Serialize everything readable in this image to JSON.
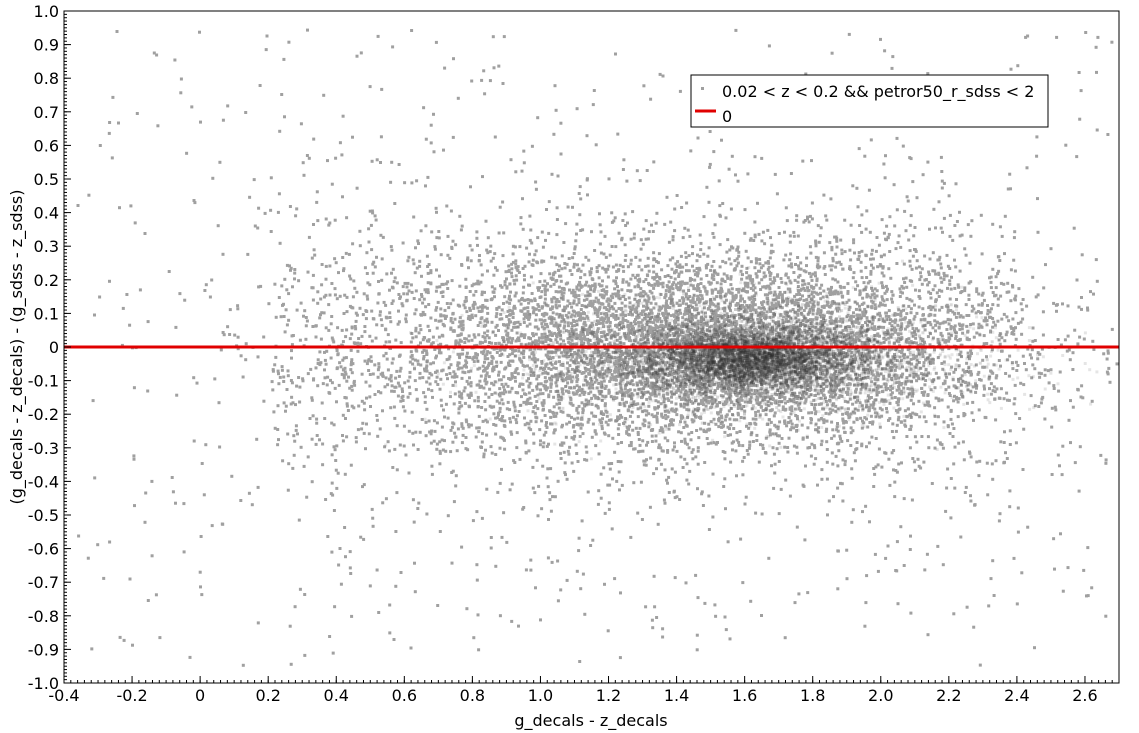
{
  "chart_data": {
    "type": "scatter",
    "title": "",
    "xlabel": "g_decals - z_decals",
    "ylabel": "(g_decals - z_decals) - (g_sdss - z_sdss)",
    "xlim": [
      -0.4,
      2.7
    ],
    "ylim": [
      -1.0,
      1.0
    ],
    "x_ticks": [
      "-0.4",
      "-0.2",
      "0",
      "0.2",
      "0.4",
      "0.6",
      "0.8",
      "1.0",
      "1.2",
      "1.4",
      "1.6",
      "1.8",
      "2.0",
      "2.2",
      "2.4",
      "2.6"
    ],
    "x_tick_values": [
      -0.4,
      -0.2,
      0,
      0.2,
      0.4,
      0.6,
      0.8,
      1.0,
      1.2,
      1.4,
      1.6,
      1.8,
      2.0,
      2.2,
      2.4,
      2.6
    ],
    "y_ticks": [
      "-1.0",
      "-0.9",
      "-0.8",
      "-0.7",
      "-0.6",
      "-0.5",
      "-0.4",
      "-0.3",
      "-0.2",
      "-0.1",
      "0",
      "0.1",
      "0.2",
      "0.3",
      "0.4",
      "0.5",
      "0.6",
      "0.7",
      "0.8",
      "0.9",
      "1.0"
    ],
    "y_tick_values": [
      -1.0,
      -0.9,
      -0.8,
      -0.7,
      -0.6,
      -0.5,
      -0.4,
      -0.3,
      -0.2,
      -0.1,
      0,
      0.1,
      0.2,
      0.3,
      0.4,
      0.5,
      0.6,
      0.7,
      0.8,
      0.9,
      1.0
    ],
    "grid": false,
    "legend_position": "top-right",
    "series": [
      {
        "name": "0.02 < z < 0.2 && petror50_r_sdss < 2",
        "kind": "scatter-density",
        "color": "#a0a0a0",
        "dense_color": "#2b2b2b",
        "density_peak": {
          "x": 1.62,
          "y": -0.03
        },
        "x_range": [
          -0.38,
          2.68
        ],
        "y_range": [
          -0.98,
          0.98
        ]
      },
      {
        "name": "0",
        "kind": "reference-line",
        "color": "#e00000",
        "y": 0
      }
    ]
  }
}
